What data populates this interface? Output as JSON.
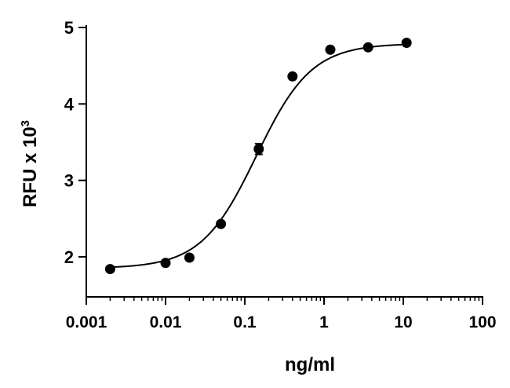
{
  "chart_data": {
    "type": "scatter",
    "title": "",
    "xlabel": "ng/ml",
    "ylabel": {
      "base": "RFU x 10",
      "superscript": "3"
    },
    "xscale": "log",
    "xlim": [
      0.001,
      100
    ],
    "ylim": [
      1.5,
      5
    ],
    "x_ticks": [
      0.001,
      0.01,
      0.1,
      1,
      10,
      100
    ],
    "x_tick_labels": [
      "0.001",
      "0.01",
      "0.1",
      "1",
      "10",
      "100"
    ],
    "y_ticks": [
      2,
      3,
      4,
      5
    ],
    "y_tick_labels": [
      "2",
      "3",
      "4",
      "5"
    ],
    "grid": false,
    "legend": "none",
    "series": [
      {
        "x": [
          0.002,
          0.01,
          0.02,
          0.05,
          0.15,
          0.4,
          1.2,
          3.6,
          11
        ],
        "y": [
          1.84,
          1.92,
          1.99,
          2.43,
          3.41,
          4.36,
          4.71,
          4.74,
          4.8
        ],
        "error": [
          0.02,
          0.03,
          0.03,
          0.03,
          0.07,
          0.03,
          0.02,
          0.02,
          0.02
        ]
      }
    ],
    "fit_curve": {
      "model": "4PL",
      "bottom": 1.85,
      "top": 4.79,
      "ec50": 0.14,
      "hill": 1.25
    },
    "marker_color": "#000000",
    "line_color": "#000000"
  }
}
